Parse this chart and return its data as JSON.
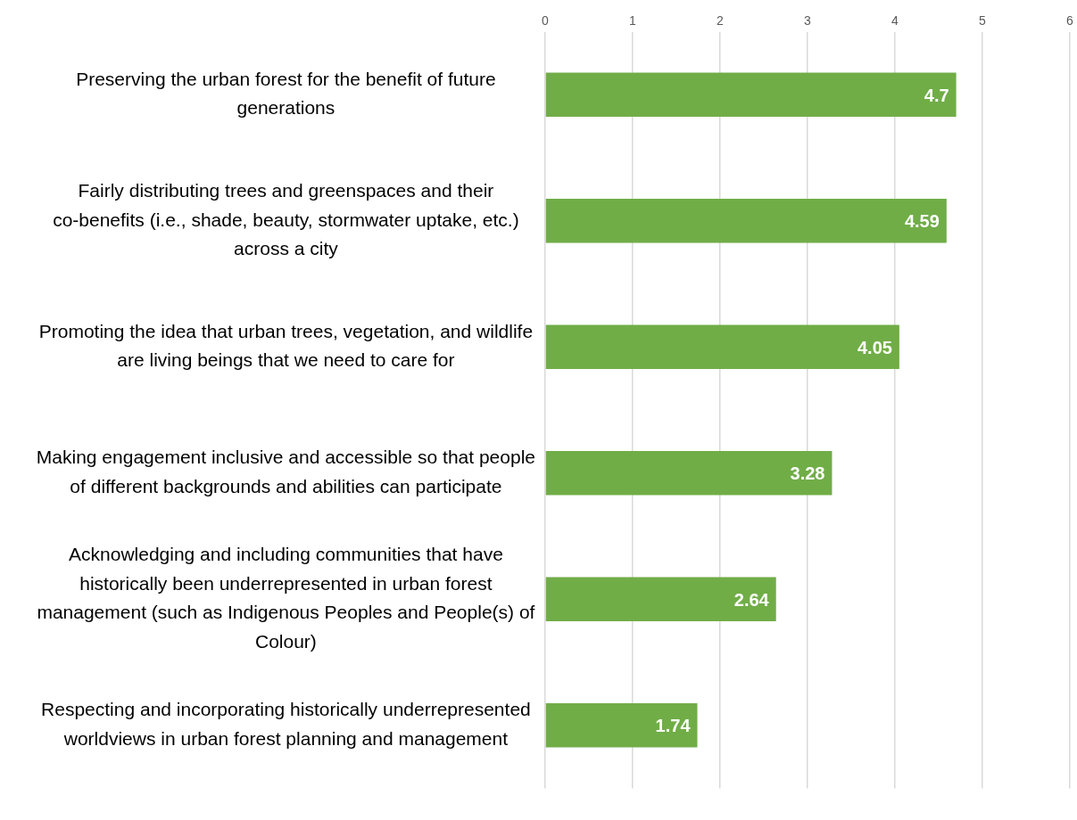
{
  "chart_data": {
    "type": "bar",
    "orientation": "horizontal",
    "categories": [
      "Preserving the urban forest for the benefit of future generations",
      "Fairly distributing trees and greenspaces and their co-benefits (i.e., shade, beauty, stormwater uptake, etc.) across a city",
      "Promoting the idea that urban trees, vegetation, and wildlife are living beings that we need to care for",
      "Making engagement inclusive and accessible so that people of different backgrounds and abilities can participate",
      "Acknowledging and including communities that have historically been underrepresented in urban forest management (such as Indigenous Peoples and People(s) of Colour)",
      "Respecting and incorporating historically underrepresented worldviews in urban forest planning and management"
    ],
    "values": [
      4.7,
      4.59,
      4.05,
      3.28,
      2.64,
      1.74
    ],
    "color": "#70ad47",
    "xlim": [
      0,
      6
    ],
    "xticks": [
      0,
      1,
      2,
      3,
      4,
      5,
      6
    ],
    "grid": "x",
    "data_labels": true
  }
}
